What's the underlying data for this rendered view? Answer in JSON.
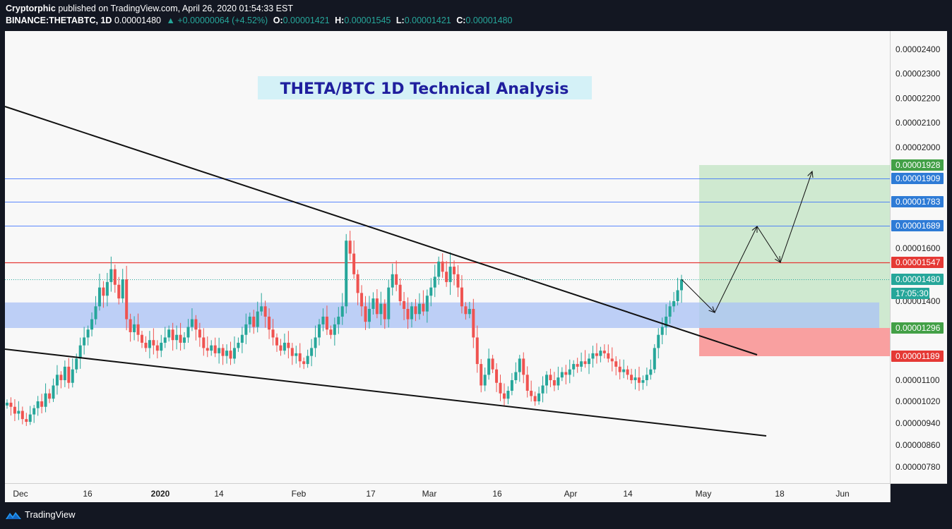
{
  "header": {
    "author": "Cryptorphic",
    "published_text": "published on TradingView.com, April 26, 2020 01:54:33 EST",
    "symbol": "BINANCE:THETABTC, 1D",
    "last": "0.00001480",
    "change": "+0.00000064 (+4.52%)",
    "o_label": "O:",
    "o": "0.00001421",
    "h_label": "H:",
    "h": "0.00001545",
    "l_label": "L:",
    "l": "0.00001421",
    "c_label": "C:",
    "c": "0.00001480"
  },
  "footer": {
    "brand": "TradingView"
  },
  "colors": {
    "up": "#26a69a",
    "down": "#ef5350",
    "background": "#f8f8f8",
    "target_zone": "#c8e6c9",
    "stop_zone": "#f9a0a0",
    "support_band": "#a9c1f5",
    "title_bg": "#d4f1f7",
    "title_text": "#1f1f9e",
    "level_line": "#2962ff",
    "resistance_line": "#e53935"
  },
  "chart_data": {
    "type": "candlestick",
    "title": "THETA/BTC 1D Technical Analysis",
    "y_ticks": [
      "0.00002400",
      "0.00002300",
      "0.00002200",
      "0.00002100",
      "0.00002000",
      "0.00001600",
      "0.00001400",
      "0.00001100",
      "0.00001020",
      "0.00000940",
      "0.00000860",
      "0.00000780"
    ],
    "x_ticks": [
      "Dec",
      "16",
      "2020",
      "14",
      "Feb",
      "17",
      "Mar",
      "16",
      "Apr",
      "14",
      "May",
      "18",
      "Jun"
    ],
    "price_labels": [
      {
        "value": "0.00001928",
        "color": "#43a047"
      },
      {
        "value": "0.00001909",
        "color": "#2e7bd6"
      },
      {
        "value": "0.00001783",
        "color": "#2e7bd6"
      },
      {
        "value": "0.00001689",
        "color": "#2e7bd6"
      },
      {
        "value": "0.00001547",
        "color": "#e53935"
      },
      {
        "value": "0.00001480",
        "color": "#26a69a"
      },
      {
        "value": "17:05:30",
        "color": "#26a69a"
      },
      {
        "value": "0.00001296",
        "color": "#43a047"
      },
      {
        "value": "0.00001189",
        "color": "#e53935"
      }
    ],
    "levels": [
      {
        "price": 1.909e-05,
        "type": "resistance"
      },
      {
        "price": 1.783e-05,
        "type": "resistance"
      },
      {
        "price": 1.689e-05,
        "type": "resistance"
      },
      {
        "price": 1.547e-05,
        "type": "key-resistance"
      },
      {
        "price": 1.48e-05,
        "type": "current"
      }
    ],
    "support_band": [
      1.296e-05,
      1.395e-05
    ],
    "target_zone": [
      1.296e-05,
      1.928e-05
    ],
    "stop_zone": [
      1.189e-05,
      1.296e-05
    ],
    "closes": [
      1.015e-05,
      1e-05,
      9.75e-06,
      9.85e-06,
      9.55e-06,
      9.45e-06,
      9.72e-06,
      9.95e-06,
      1.02e-05,
      1e-05,
      1.05e-05,
      1.03e-05,
      1.08e-05,
      1.12e-05,
      1.1e-05,
      1.15e-05,
      1.09e-05,
      1.14e-05,
      1.18e-05,
      1.23e-05,
      1.26e-05,
      1.29e-05,
      1.33e-05,
      1.38e-05,
      1.45e-05,
      1.42e-05,
      1.47e-05,
      1.52e-05,
      1.46e-05,
      1.41e-05,
      1.48e-05,
      1.33e-05,
      1.28e-05,
      1.31e-05,
      1.27e-05,
      1.24e-05,
      1.22e-05,
      1.25e-05,
      1.23e-05,
      1.21e-05,
      1.24e-05,
      1.26e-05,
      1.29e-05,
      1.25e-05,
      1.27e-05,
      1.24e-05,
      1.26e-05,
      1.3e-05,
      1.33e-05,
      1.29e-05,
      1.26e-05,
      1.22e-05,
      1.21e-05,
      1.23e-05,
      1.2e-05,
      1.22e-05,
      1.19e-05,
      1.21e-05,
      1.18e-05,
      1.22e-05,
      1.24e-05,
      1.27e-05,
      1.31e-05,
      1.34e-05,
      1.3e-05,
      1.36e-05,
      1.38e-05,
      1.34e-05,
      1.29e-05,
      1.26e-05,
      1.23e-05,
      1.21e-05,
      1.24e-05,
      1.22e-05,
      1.19e-05,
      1.2e-05,
      1.17e-05,
      1.16e-05,
      1.19e-05,
      1.22e-05,
      1.26e-05,
      1.31e-05,
      1.34e-05,
      1.29e-05,
      1.27e-05,
      1.31e-05,
      1.34e-05,
      1.38e-05,
      1.63e-05,
      1.58e-05,
      1.5e-05,
      1.43e-05,
      1.38e-05,
      1.32e-05,
      1.37e-05,
      1.41e-05,
      1.35e-05,
      1.39e-05,
      1.33e-05,
      1.45e-05,
      1.5e-05,
      1.46e-05,
      1.4e-05,
      1.37e-05,
      1.33e-05,
      1.38e-05,
      1.35e-05,
      1.39e-05,
      1.36e-05,
      1.42e-05,
      1.45e-05,
      1.49e-05,
      1.55e-05,
      1.51e-05,
      1.47e-05,
      1.53e-05,
      1.5e-05,
      1.45e-05,
      1.38e-05,
      1.35e-05,
      1.37e-05,
      1.26e-05,
      1.16e-05,
      1.08e-05,
      1.12e-05,
      1.18e-05,
      1.14e-05,
      1.09e-05,
      1.05e-05,
      1.03e-05,
      1.06e-05,
      1.1e-05,
      1.13e-05,
      1.18e-05,
      1.12e-05,
      1.06e-05,
      1.04e-05,
      1.02e-05,
      1.05e-05,
      1.08e-05,
      1.12e-05,
      1.1e-05,
      1.08e-05,
      1.11e-05,
      1.13e-05,
      1.12e-05,
      1.14e-05,
      1.16e-05,
      1.15e-05,
      1.17e-05,
      1.16e-05,
      1.18e-05,
      1.2e-05,
      1.19e-05,
      1.21e-05,
      1.2e-05,
      1.18e-05,
      1.17e-05,
      1.15e-05,
      1.13e-05,
      1.14e-05,
      1.12e-05,
      1.1e-05,
      1.11e-05,
      1.09e-05,
      1.1e-05,
      1.12e-05,
      1.14e-05,
      1.22e-05,
      1.27e-05,
      1.3e-05,
      1.34e-05,
      1.38e-05,
      1.4e-05,
      1.44e-05,
      1.48e-05
    ]
  }
}
